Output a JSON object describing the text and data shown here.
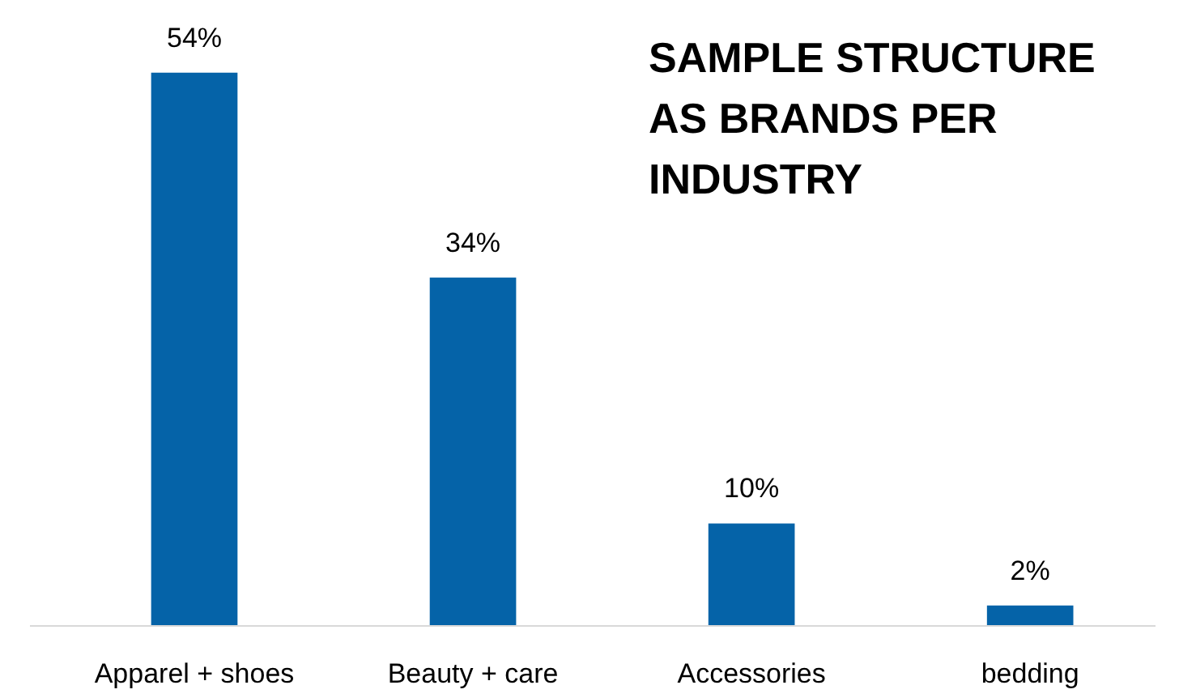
{
  "chart_data": {
    "type": "bar",
    "title": "SAMPLE STRUCTURE AS BRANDS PER INDUSTRY",
    "categories": [
      "Apparel + shoes",
      "Beauty + care",
      "Accessories",
      "bedding"
    ],
    "values": [
      54,
      34,
      10,
      2
    ],
    "value_labels": [
      "54%",
      "34%",
      "10%",
      "2%"
    ],
    "color": "#0563a8",
    "grid": false
  }
}
